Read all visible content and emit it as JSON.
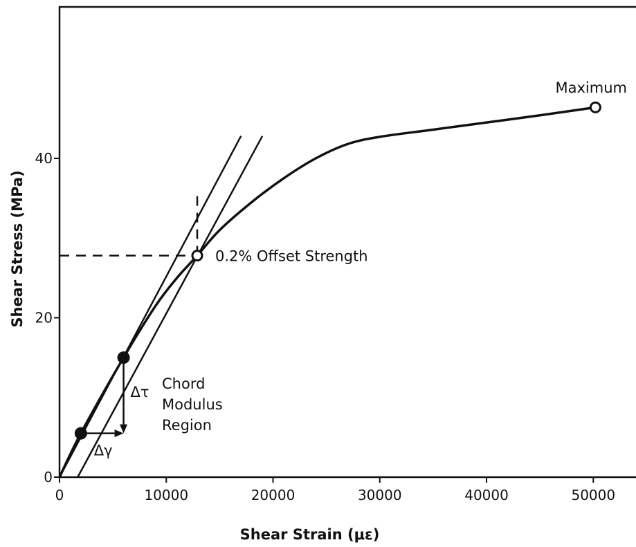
{
  "chart_data": {
    "type": "line",
    "title": "",
    "xlabel": "Shear Strain (με)",
    "ylabel": "Shear Stress (MPa)",
    "xlim": [
      0,
      54000
    ],
    "ylim": [
      0,
      59
    ],
    "xticks": [
      0,
      10000,
      20000,
      30000,
      40000,
      50000
    ],
    "xtick_labels": [
      "0",
      "10000",
      "20000",
      "30000",
      "40000",
      "50000"
    ],
    "yticks": [
      0,
      20,
      40
    ],
    "ytick_labels": [
      "0",
      "20",
      "40"
    ],
    "grid": false,
    "legend": "none",
    "series": [
      {
        "x": [
          0,
          2000,
          6000,
          9000,
          11000,
          12900,
          15000,
          18000,
          21000,
          24000,
          27000,
          30000,
          35000,
          40000,
          45000,
          50200
        ],
        "y": [
          0,
          5.5,
          15,
          21.5,
          25,
          27.8,
          31,
          34.5,
          37.5,
          40,
          41.8,
          42.7,
          43.6,
          44.5,
          45.4,
          46.4
        ]
      }
    ],
    "chord_points": [
      {
        "x": 2000,
        "y": 5.5
      },
      {
        "x": 6000,
        "y": 15
      }
    ],
    "open_points": [
      {
        "x": 12900,
        "y": 27.8
      },
      {
        "x": 50200,
        "y": 46.4
      }
    ],
    "reference_lines": {
      "chord_line": {
        "x": [
          0,
          17000
        ],
        "y": [
          0,
          42.8
        ]
      },
      "offset_line": {
        "x": [
          1700,
          19000
        ],
        "y": [
          0,
          42.8
        ]
      },
      "strength_hline": {
        "x": [
          0,
          12900
        ],
        "y": [
          27.8,
          27.8
        ]
      },
      "vertical_dash": {
        "x": [
          12900,
          12900
        ],
        "y": [
          27.8,
          35.5
        ]
      }
    },
    "delta_gamma_arrow": {
      "x": [
        2000,
        6000
      ],
      "y": [
        5.5,
        5.5
      ]
    },
    "delta_tau_arrow": {
      "x": [
        6000,
        6000
      ],
      "y": [
        15,
        5.5
      ]
    },
    "annotations": {
      "offset_strength": "0.2% Offset Strength",
      "maximum": "Maximum",
      "delta_tau": "Δτ",
      "delta_gamma": "Δγ",
      "chord_line1": "Chord",
      "chord_line2": "Modulus",
      "chord_line3": "Region"
    }
  }
}
